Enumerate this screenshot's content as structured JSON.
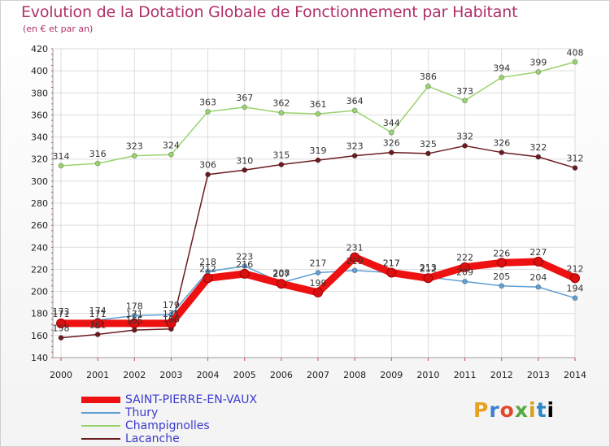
{
  "title": "Evolution de la Dotation Globale de Fonctionnement par Habitant",
  "subtitle": "(en € et par an)",
  "logo": "Proxiti",
  "chart_data": {
    "type": "line",
    "title": "Evolution de la Dotation Globale de Fonctionnement par Habitant",
    "subtitle": "(en € et par an)",
    "xlabel": "",
    "ylabel": "",
    "ylim": [
      140,
      420
    ],
    "yticks": [
      140,
      160,
      180,
      200,
      220,
      240,
      260,
      280,
      300,
      320,
      340,
      360,
      380,
      400,
      420
    ],
    "grid": true,
    "legend_position": "bottom-left",
    "categories": [
      "2000",
      "2001",
      "2002",
      "2003",
      "2004",
      "2005",
      "2006",
      "2007",
      "2008",
      "2009",
      "2010",
      "2011",
      "2012",
      "2013",
      "2014"
    ],
    "series": [
      {
        "name": "SAINT-PIERRE-EN-VAUX",
        "color": "#ee1111",
        "values": [
          171,
          171,
          171,
          171,
          212,
          216,
          207,
          199,
          231,
          217,
          212,
          222,
          226,
          227,
          212
        ]
      },
      {
        "name": "Thury",
        "color": "#5f9fd3",
        "values": [
          173,
          174,
          178,
          179,
          218,
          223,
          208,
          217,
          219,
          217,
          213,
          209,
          205,
          204,
          194
        ]
      },
      {
        "name": "Champignolles",
        "color": "#99d36e",
        "values": [
          314,
          316,
          323,
          324,
          363,
          367,
          362,
          361,
          364,
          344,
          386,
          373,
          394,
          399,
          408
        ]
      },
      {
        "name": "Lacanche",
        "color": "#6b1a1f",
        "values": [
          158,
          161,
          165,
          166,
          306,
          310,
          315,
          319,
          323,
          326,
          325,
          332,
          326,
          322,
          312
        ]
      }
    ]
  }
}
